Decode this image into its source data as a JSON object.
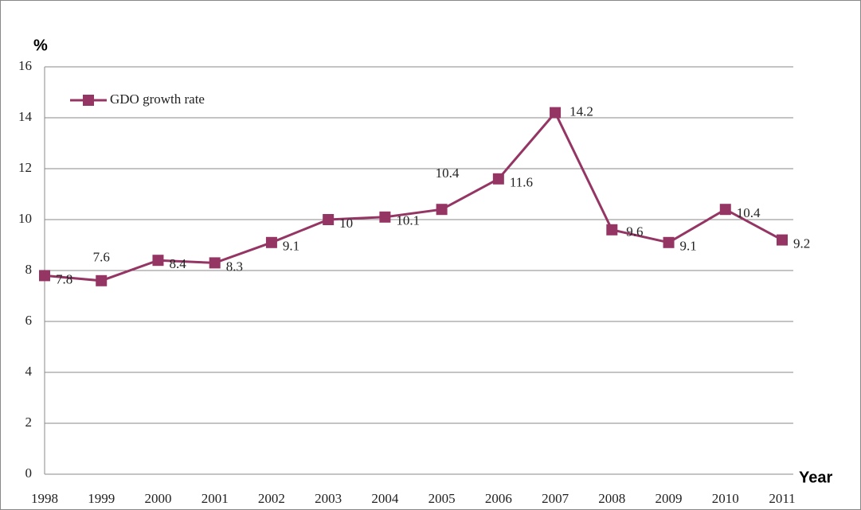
{
  "chart_data": {
    "type": "line",
    "y_label": "%",
    "x_label": "Year",
    "categories": [
      "1998",
      "1999",
      "2000",
      "2001",
      "2002",
      "2003",
      "2004",
      "2005",
      "2006",
      "2007",
      "2008",
      "2009",
      "2010",
      "2011"
    ],
    "series": [
      {
        "name": "GDO growth rate",
        "color": "#953564",
        "values": [
          7.8,
          7.6,
          8.4,
          8.3,
          9.1,
          10,
          10.1,
          10.4,
          11.6,
          14.2,
          9.6,
          9.1,
          10.4,
          9.2
        ]
      }
    ],
    "ylim": [
      0,
      16
    ],
    "yticks": [
      0,
      2,
      4,
      6,
      8,
      10,
      12,
      14,
      16
    ],
    "grid": true,
    "legend": "top-left"
  }
}
